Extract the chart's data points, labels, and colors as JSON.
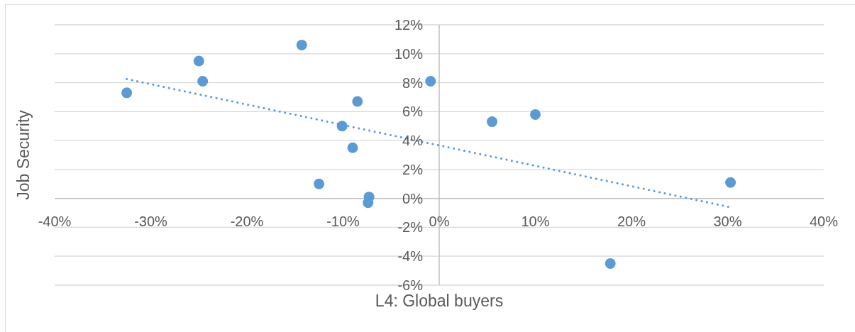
{
  "chart_data": {
    "type": "scatter",
    "xlabel": "L4: Global buyers",
    "ylabel": "Job Security",
    "xlim": [
      -40,
      40
    ],
    "ylim": [
      -6,
      12
    ],
    "xticks": [
      {
        "value": -40,
        "label": "-40%"
      },
      {
        "value": -30,
        "label": "-30%"
      },
      {
        "value": -20,
        "label": "-20%"
      },
      {
        "value": -10,
        "label": "-10%"
      },
      {
        "value": 0,
        "label": "0%"
      },
      {
        "value": 10,
        "label": "10%"
      },
      {
        "value": 20,
        "label": "20%"
      },
      {
        "value": 30,
        "label": "30%"
      },
      {
        "value": 40,
        "label": "40%"
      }
    ],
    "yticks": [
      {
        "value": -6,
        "label": "-6%"
      },
      {
        "value": -4,
        "label": "-4%"
      },
      {
        "value": -2,
        "label": "-2%"
      },
      {
        "value": 0,
        "label": "0%"
      },
      {
        "value": 2,
        "label": "2%"
      },
      {
        "value": 4,
        "label": "4%"
      },
      {
        "value": 6,
        "label": "6%"
      },
      {
        "value": 8,
        "label": "8%"
      },
      {
        "value": 10,
        "label": "10%"
      },
      {
        "value": 12,
        "label": "12%"
      }
    ],
    "grid": "y",
    "series": [
      {
        "type": "scatter",
        "color": "#5b9bd5",
        "marker": "circle",
        "x": [
          -32.5,
          -25.0,
          -24.6,
          -14.3,
          -0.9,
          -8.5,
          -10.1,
          -9.0,
          -12.5,
          -7.3,
          -7.4,
          5.5,
          10.0,
          30.3,
          17.8
        ],
        "values": [
          7.3,
          9.5,
          8.1,
          10.6,
          8.1,
          6.7,
          5.0,
          3.5,
          1.0,
          0.1,
          -0.3,
          5.3,
          5.8,
          1.1,
          -4.5
        ]
      },
      {
        "type": "line",
        "color": "#5b9bd5",
        "line_style": "dotted",
        "marker": "none",
        "x": [
          -32.5,
          30.2
        ],
        "values": [
          8.25,
          -0.6
        ]
      }
    ]
  }
}
